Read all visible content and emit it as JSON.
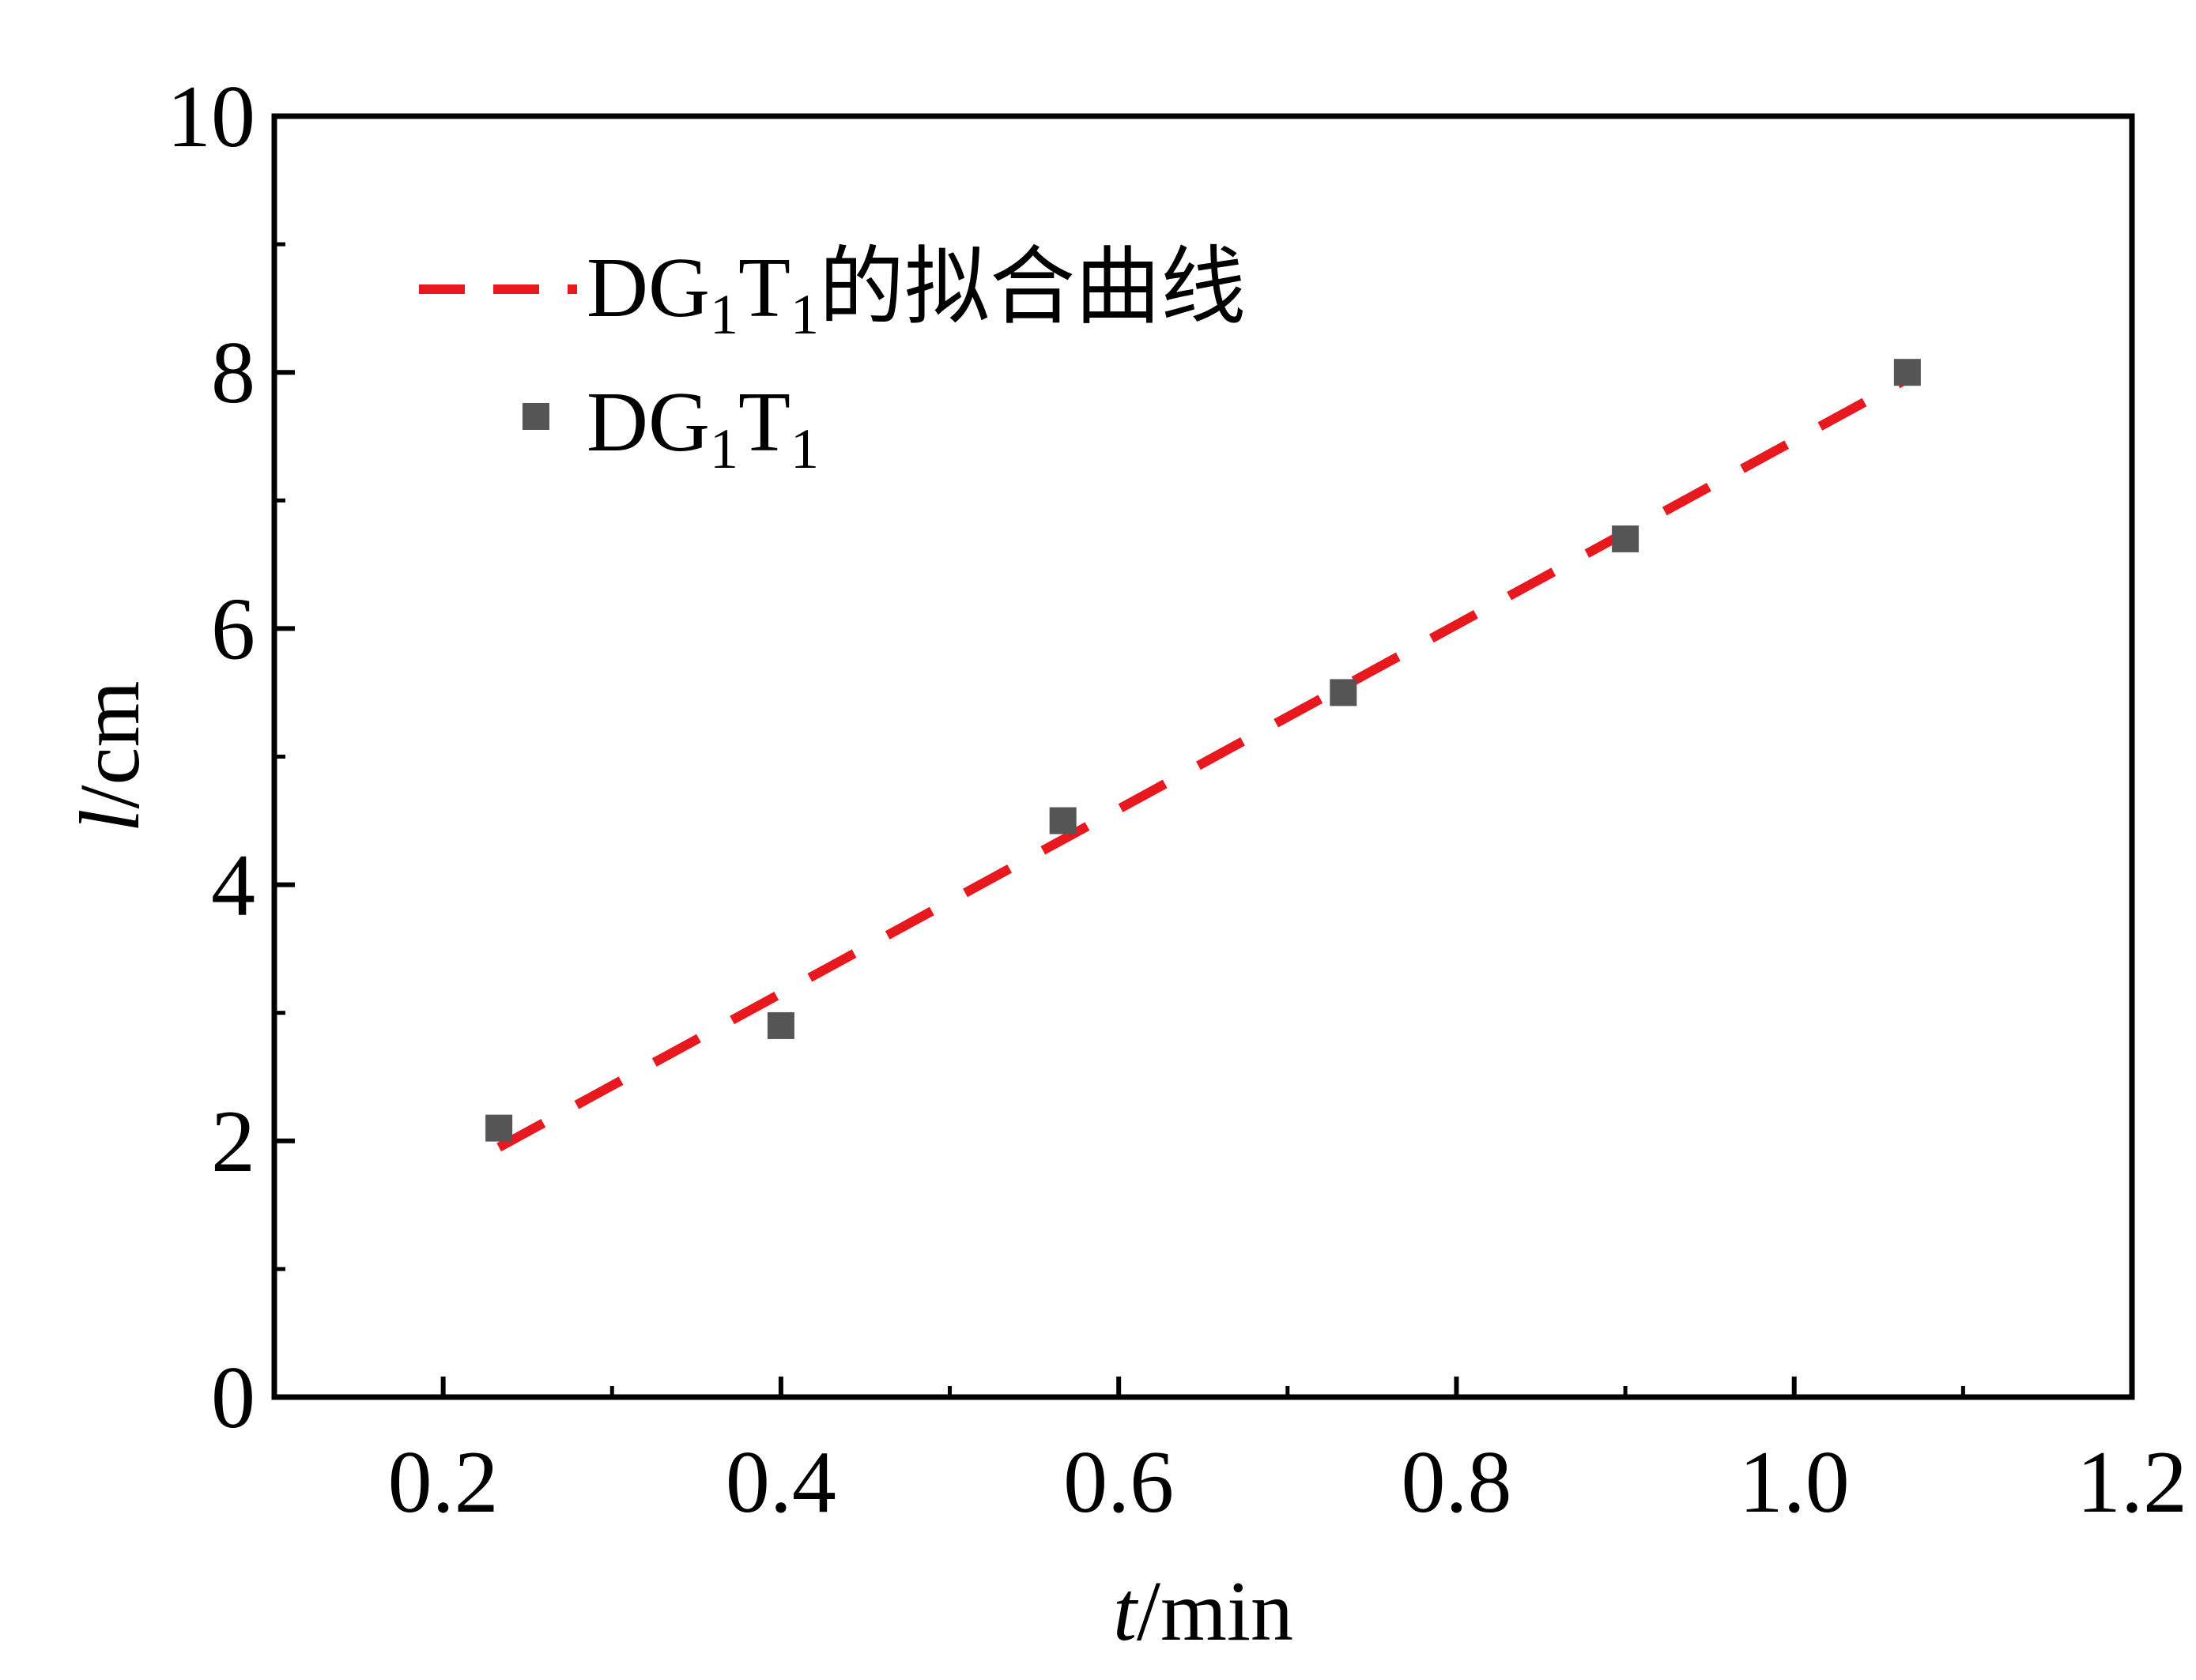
{
  "chart_data": {
    "type": "scatter",
    "xlabel": {
      "italic": "t",
      "rest": "/min"
    },
    "ylabel": {
      "italic": "l",
      "rest": "/cm"
    },
    "xlim": [
      0.1,
      1.2
    ],
    "ylim": [
      0,
      10
    ],
    "x_ticks": [
      0.2,
      0.4,
      0.6,
      0.8,
      1.0,
      1.2
    ],
    "x_tick_labels": [
      "0.2",
      "0.4",
      "0.6",
      "0.8",
      "1.0",
      "1.2"
    ],
    "y_ticks": [
      0,
      2,
      4,
      6,
      8,
      10
    ],
    "y_tick_labels": [
      "0",
      "2",
      "4",
      "6",
      "8",
      "10"
    ],
    "grid": false,
    "legend_position": "top-left",
    "series": [
      {
        "name": "DG1T1的拟合曲线",
        "kind": "line",
        "style": "dashed",
        "color": "#e8191e",
        "x": [
          0.233,
          1.067
        ],
        "y": [
          1.95,
          7.95
        ]
      },
      {
        "name": "DG1T1",
        "kind": "scatter",
        "marker": "square",
        "color": "#555555",
        "x": [
          0.233,
          0.4,
          0.567,
          0.733,
          0.9,
          1.067
        ],
        "y": [
          2.1,
          2.9,
          4.5,
          5.5,
          6.7,
          8.0
        ]
      }
    ],
    "legend": [
      {
        "prefix": "DG",
        "sub1": "1",
        "mid": "T",
        "sub2": "1",
        "suffix": "的拟合曲线"
      },
      {
        "prefix": "DG",
        "sub1": "1",
        "mid": "T",
        "sub2": "1",
        "suffix": ""
      }
    ]
  }
}
